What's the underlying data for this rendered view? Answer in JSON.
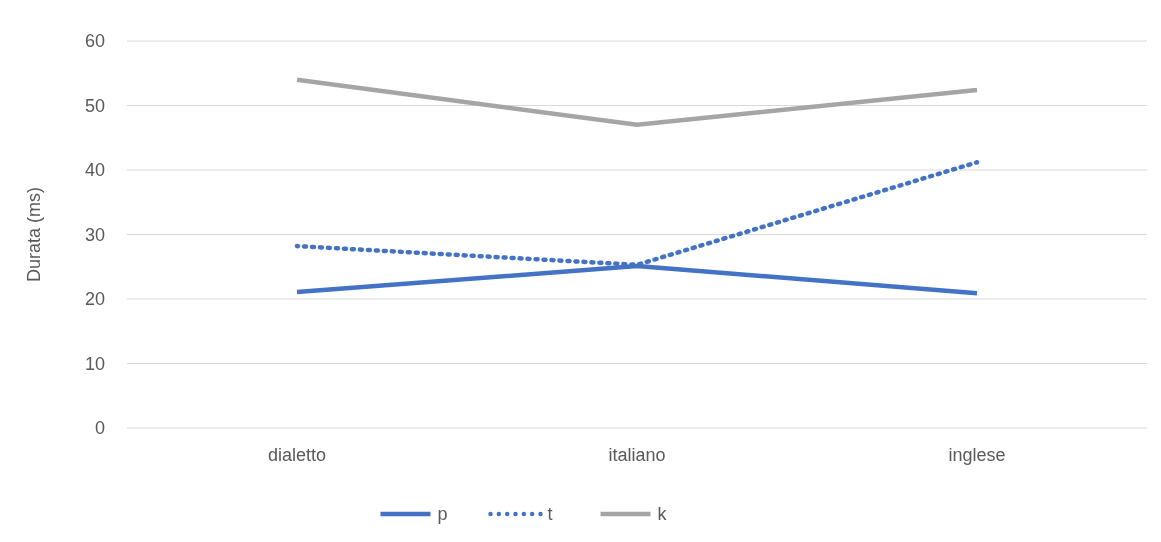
{
  "chart_data": {
    "type": "line",
    "ylabel": "Durata (ms)",
    "categories": [
      "dialetto",
      "italiano",
      "inglese"
    ],
    "series": [
      {
        "name": "p",
        "color": "#4472c4",
        "values": [
          21.1,
          25.1,
          20.9
        ],
        "line_style": "solid"
      },
      {
        "name": "t",
        "color": "#4472c4",
        "values": [
          28.2,
          25.3,
          41.2
        ],
        "line_style": "dotted"
      },
      {
        "name": "k",
        "color": "#a5a5a5",
        "values": [
          54,
          47,
          52.4
        ],
        "line_style": "solid"
      }
    ],
    "ylim": [
      0,
      60
    ],
    "yticks": [
      0,
      10,
      20,
      30,
      40,
      50,
      60
    ],
    "grid": "y",
    "legend": "bottom"
  }
}
